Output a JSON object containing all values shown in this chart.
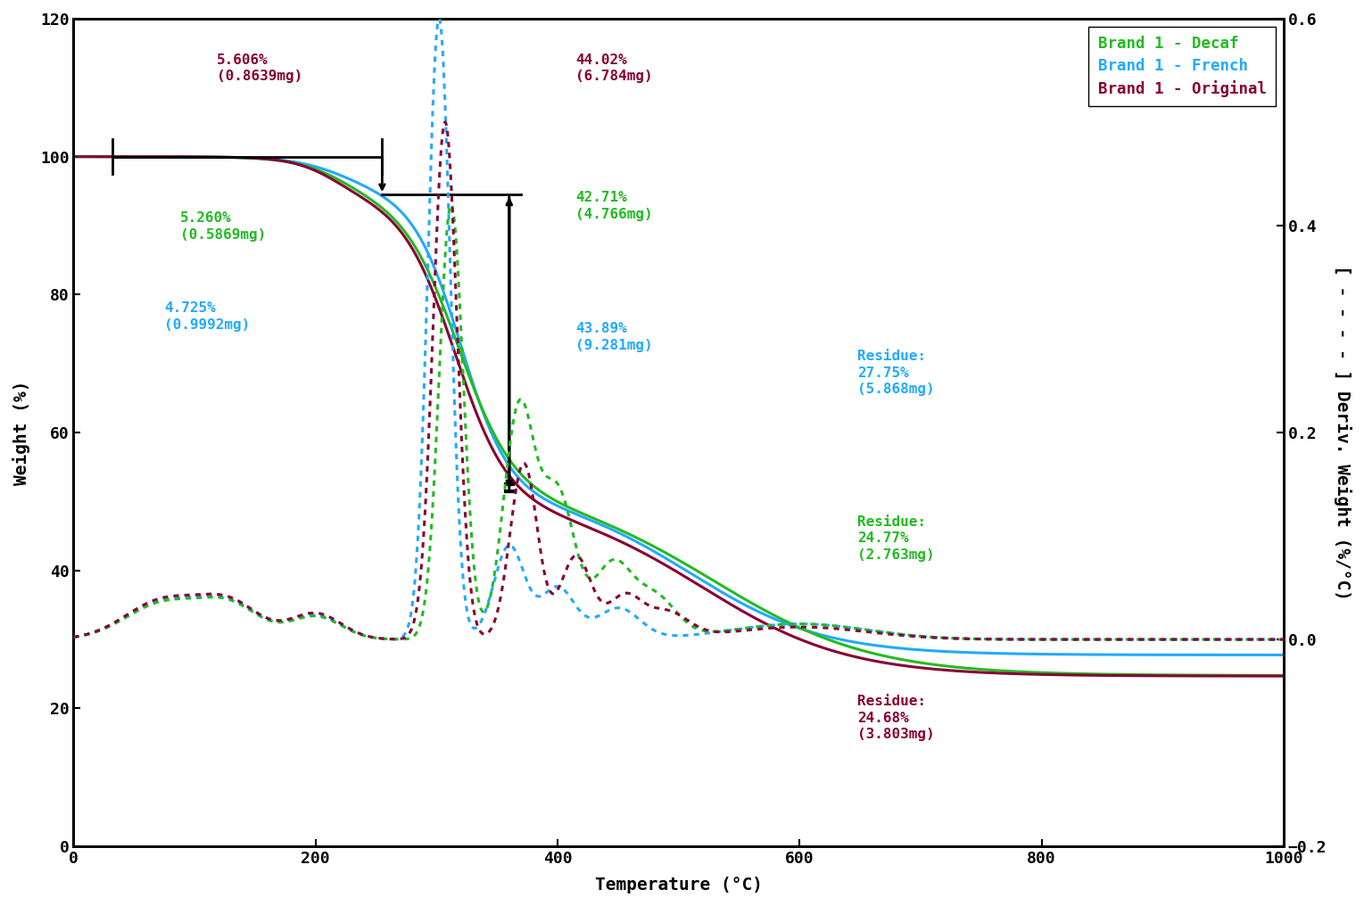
{
  "colors": {
    "decaf": "#22bb22",
    "french": "#22aaff",
    "original": "#880033"
  },
  "legend_labels": [
    "Brand 1 - Decaf",
    "Brand 1 - French",
    "Brand 1 - Original"
  ],
  "ylabel_left": "Weight (%)",
  "ylabel_right": "[ - - - - ] Deriv. Weight (%/°C)",
  "xlabel": "Temperature (°C)",
  "xlim": [
    0,
    1000
  ],
  "ylim_left": [
    0,
    120
  ],
  "ylim_right": [
    -0.2,
    0.6
  ],
  "background_color": "#ffffff",
  "axis_fontsize": 14,
  "tick_fontsize": 13
}
